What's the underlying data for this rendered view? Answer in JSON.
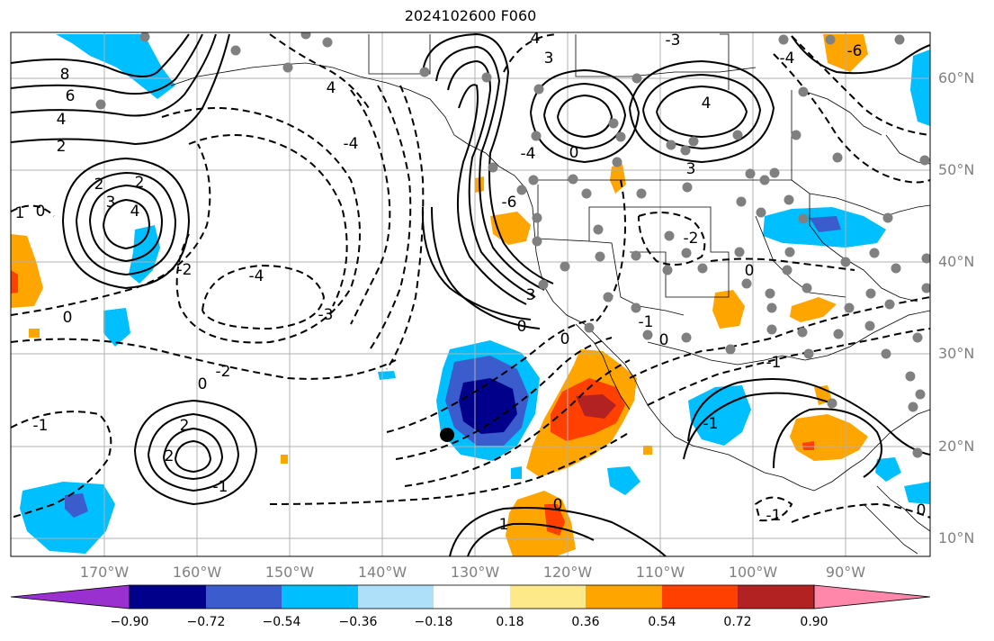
{
  "title": "2024102600 F060",
  "lon_labels": [
    "170°W",
    "160°W",
    "150°W",
    "140°W",
    "130°W",
    "120°W",
    "110°W",
    "100°W",
    "90°W"
  ],
  "lat_labels": [
    "60°N",
    "50°N",
    "40°N",
    "30°N",
    "20°N",
    "10°N"
  ],
  "colorbar": {
    "ticks": [
      "−0.90",
      "−0.72",
      "−0.54",
      "−0.36",
      "−0.18",
      "0.18",
      "0.36",
      "0.54",
      "0.72",
      "0.90"
    ],
    "colors": [
      "#9b30d0",
      "#00008b",
      "#3a5ccc",
      "#00bfff",
      "#aee0fa",
      "#ffffff",
      "#fde98a",
      "#ffa500",
      "#ff4000",
      "#b22222",
      "#ff88aa"
    ]
  },
  "contour_labels": [
    "8",
    "6",
    "4",
    "2",
    "2",
    "3",
    "4",
    "1",
    "0",
    "0",
    "-1",
    "2",
    "2",
    "2",
    "-4",
    "-3",
    "-2",
    "-2",
    "-1",
    "0",
    "4",
    "-4",
    "-4",
    "3",
    "-6",
    "0",
    "3",
    "0",
    "-3",
    "4",
    "3",
    "0",
    "-4",
    "-2",
    "0",
    "-1",
    "0",
    "1",
    "-1",
    "0",
    "-1",
    "-1",
    "0",
    "4",
    "-6"
  ]
}
